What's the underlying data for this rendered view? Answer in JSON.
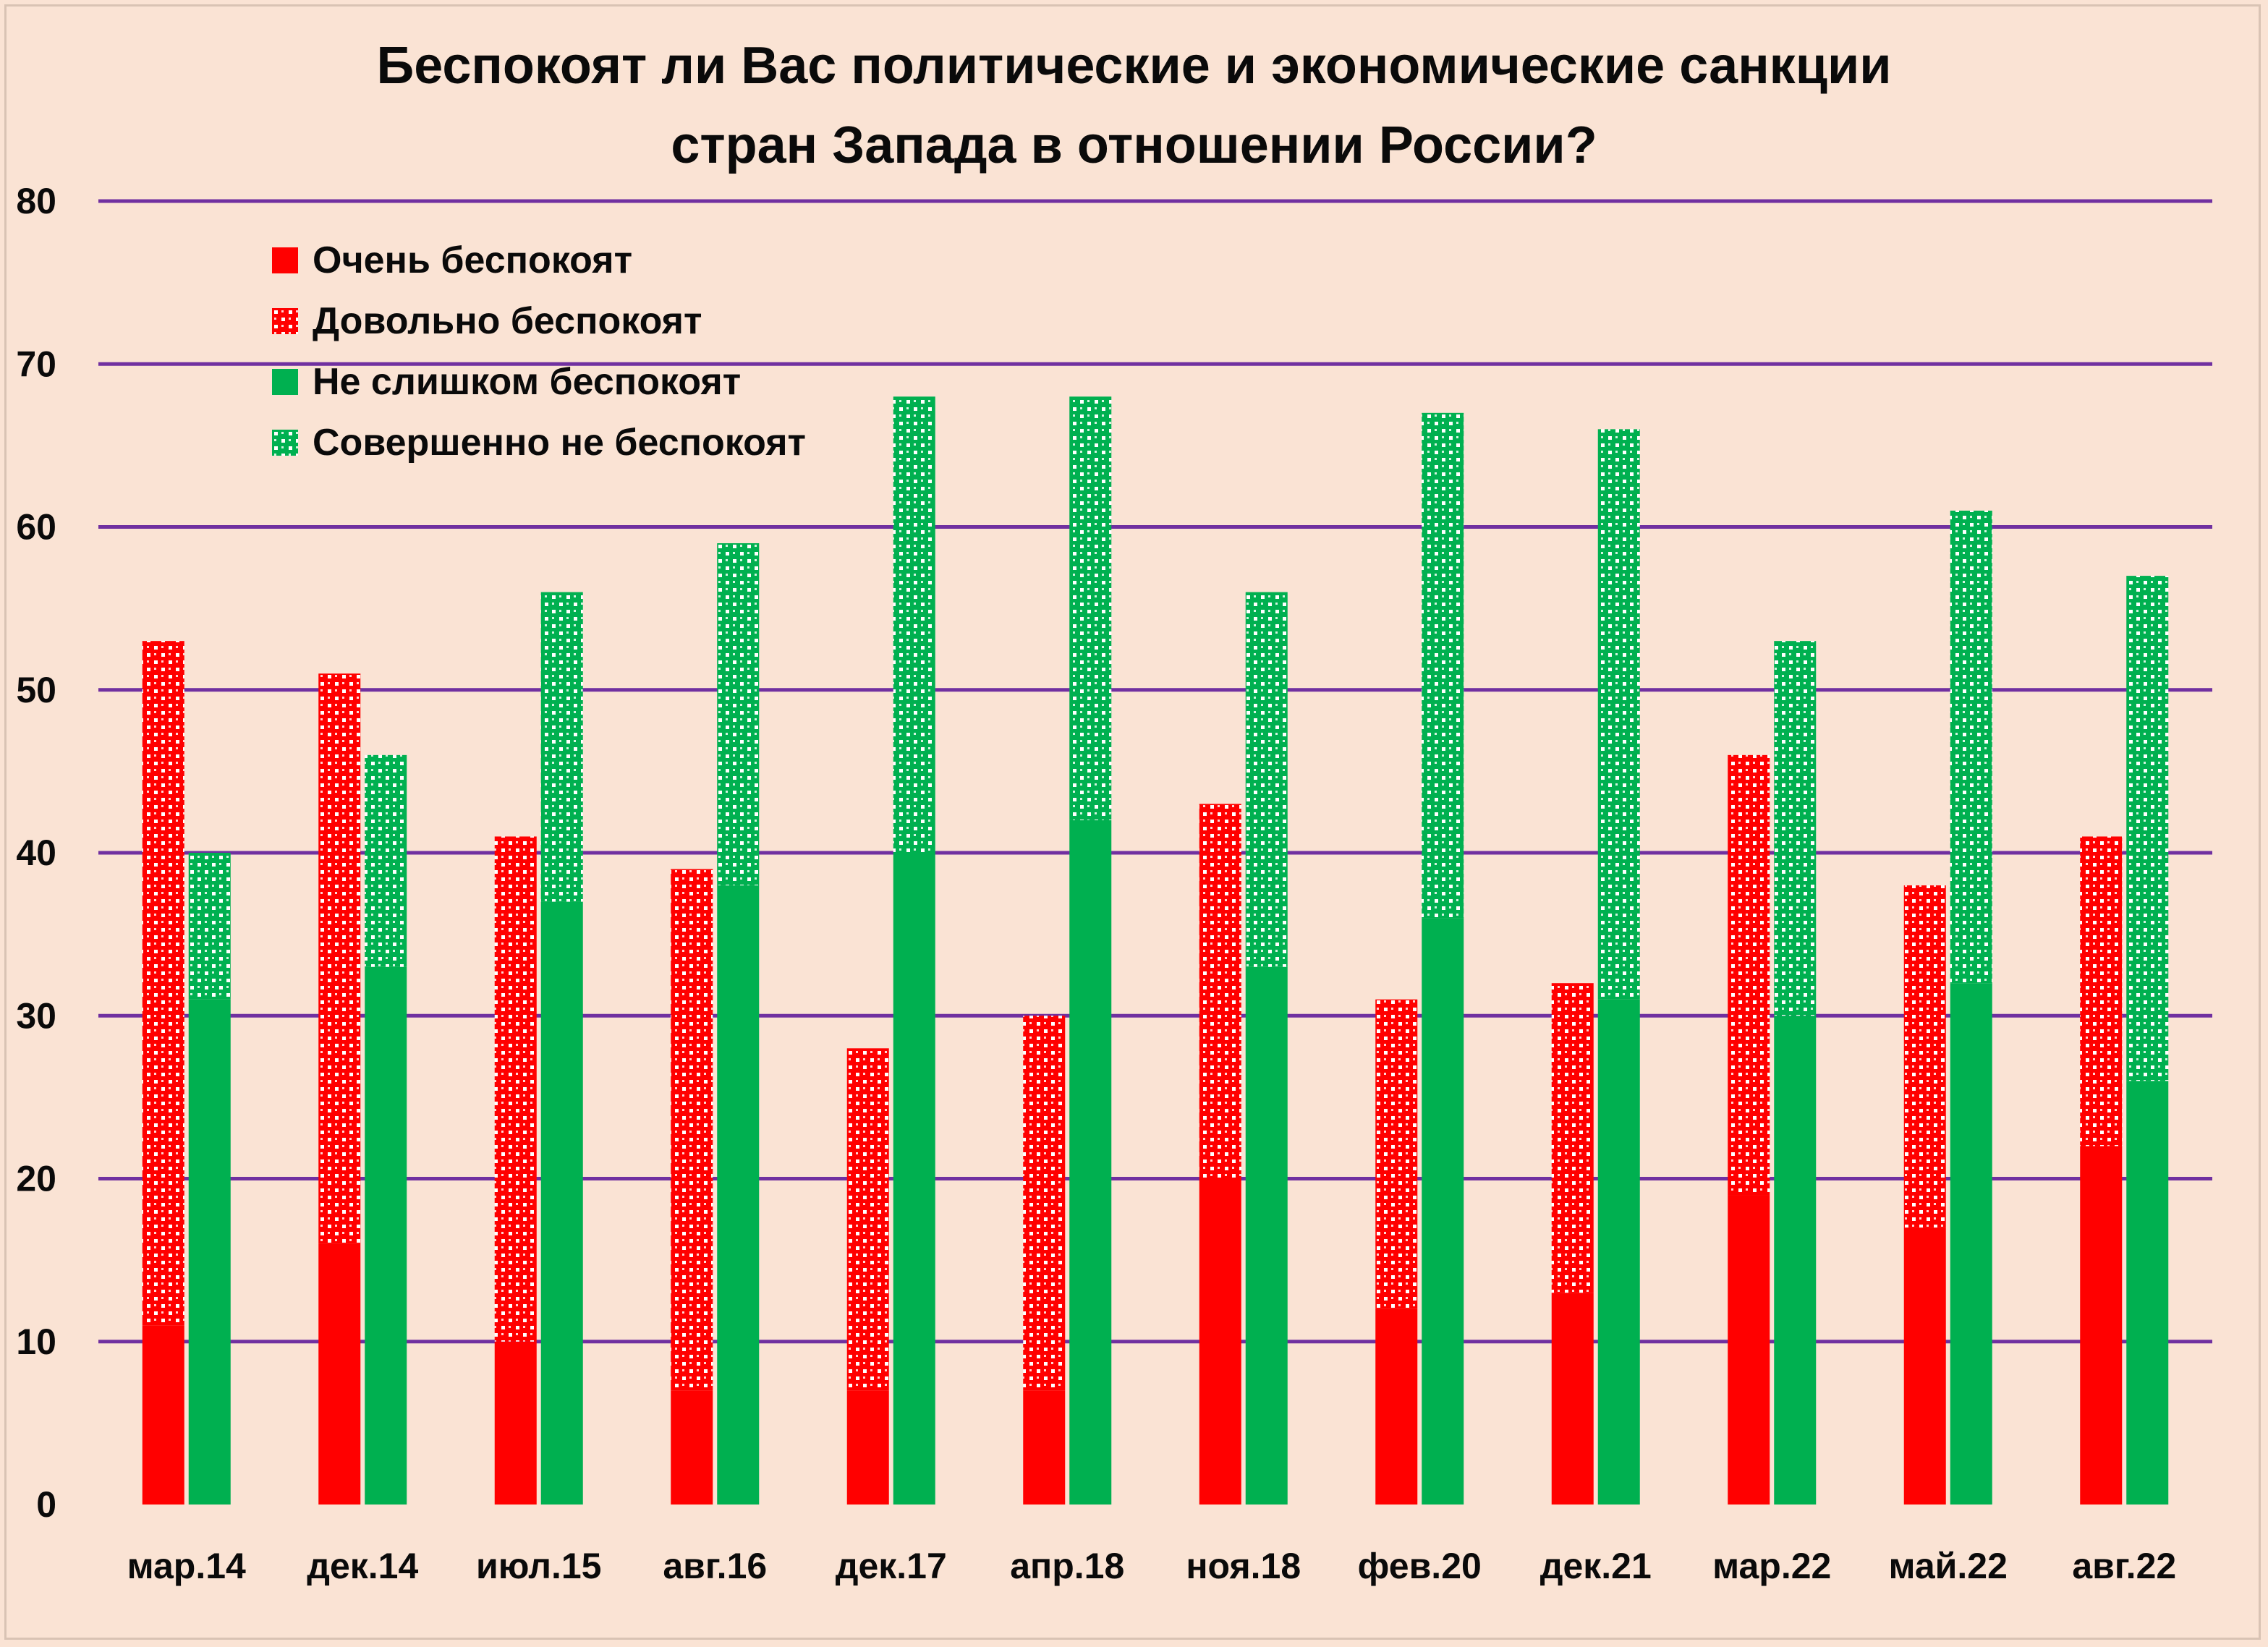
{
  "title_line1": "Беспокоят ли Вас политические и экономические санкции",
  "title_line2": "стран Запада в отношении России?",
  "colors": {
    "background": "#fae3d4",
    "grid": "#7030a0",
    "red": "#ff0000",
    "green": "#00b050"
  },
  "legend": [
    {
      "label": "Очень  беспокоят",
      "swatch": "red-solid"
    },
    {
      "label": "Довольно беспокоят",
      "swatch": "red-pattern"
    },
    {
      "label": "Не слишком беспокоят",
      "swatch": "green-solid"
    },
    {
      "label": "Совершенно не беспокоят",
      "swatch": "green-pattern"
    }
  ],
  "chart_data": {
    "type": "bar",
    "stacked_groups": true,
    "title": "Беспокоят ли Вас политические и экономические санкции стран Запада в отношении России?",
    "categories": [
      "мар.14",
      "дек.14",
      "июл.15",
      "авг.16",
      "дек.17",
      "апр.18",
      "ноя.18",
      "фев.20",
      "дек.21",
      "мар.22",
      "май.22",
      "авг.22"
    ],
    "y_ticks": [
      "0",
      "10",
      "20",
      "30",
      "40",
      "50",
      "60",
      "70",
      "80"
    ],
    "ylim": [
      0,
      80
    ],
    "grid": true,
    "legend_position": "top-left",
    "series": [
      {
        "name": "Очень  беспокоят",
        "stack": "concerned",
        "values": [
          11,
          16,
          10,
          7,
          7,
          7,
          20,
          12,
          13,
          19,
          17,
          22
        ]
      },
      {
        "name": "Довольно беспокоят",
        "stack": "concerned",
        "values": [
          42,
          35,
          31,
          32,
          21,
          23,
          23,
          19,
          19,
          27,
          21,
          19
        ]
      },
      {
        "name": "Не слишком беспокоят",
        "stack": "not-concerned",
        "values": [
          31,
          33,
          37,
          38,
          40,
          42,
          33,
          36,
          31,
          30,
          32,
          26
        ]
      },
      {
        "name": "Совершенно не беспокоят",
        "stack": "not-concerned",
        "values": [
          9,
          13,
          19,
          21,
          28,
          26,
          23,
          31,
          35,
          23,
          29,
          31
        ]
      }
    ]
  }
}
